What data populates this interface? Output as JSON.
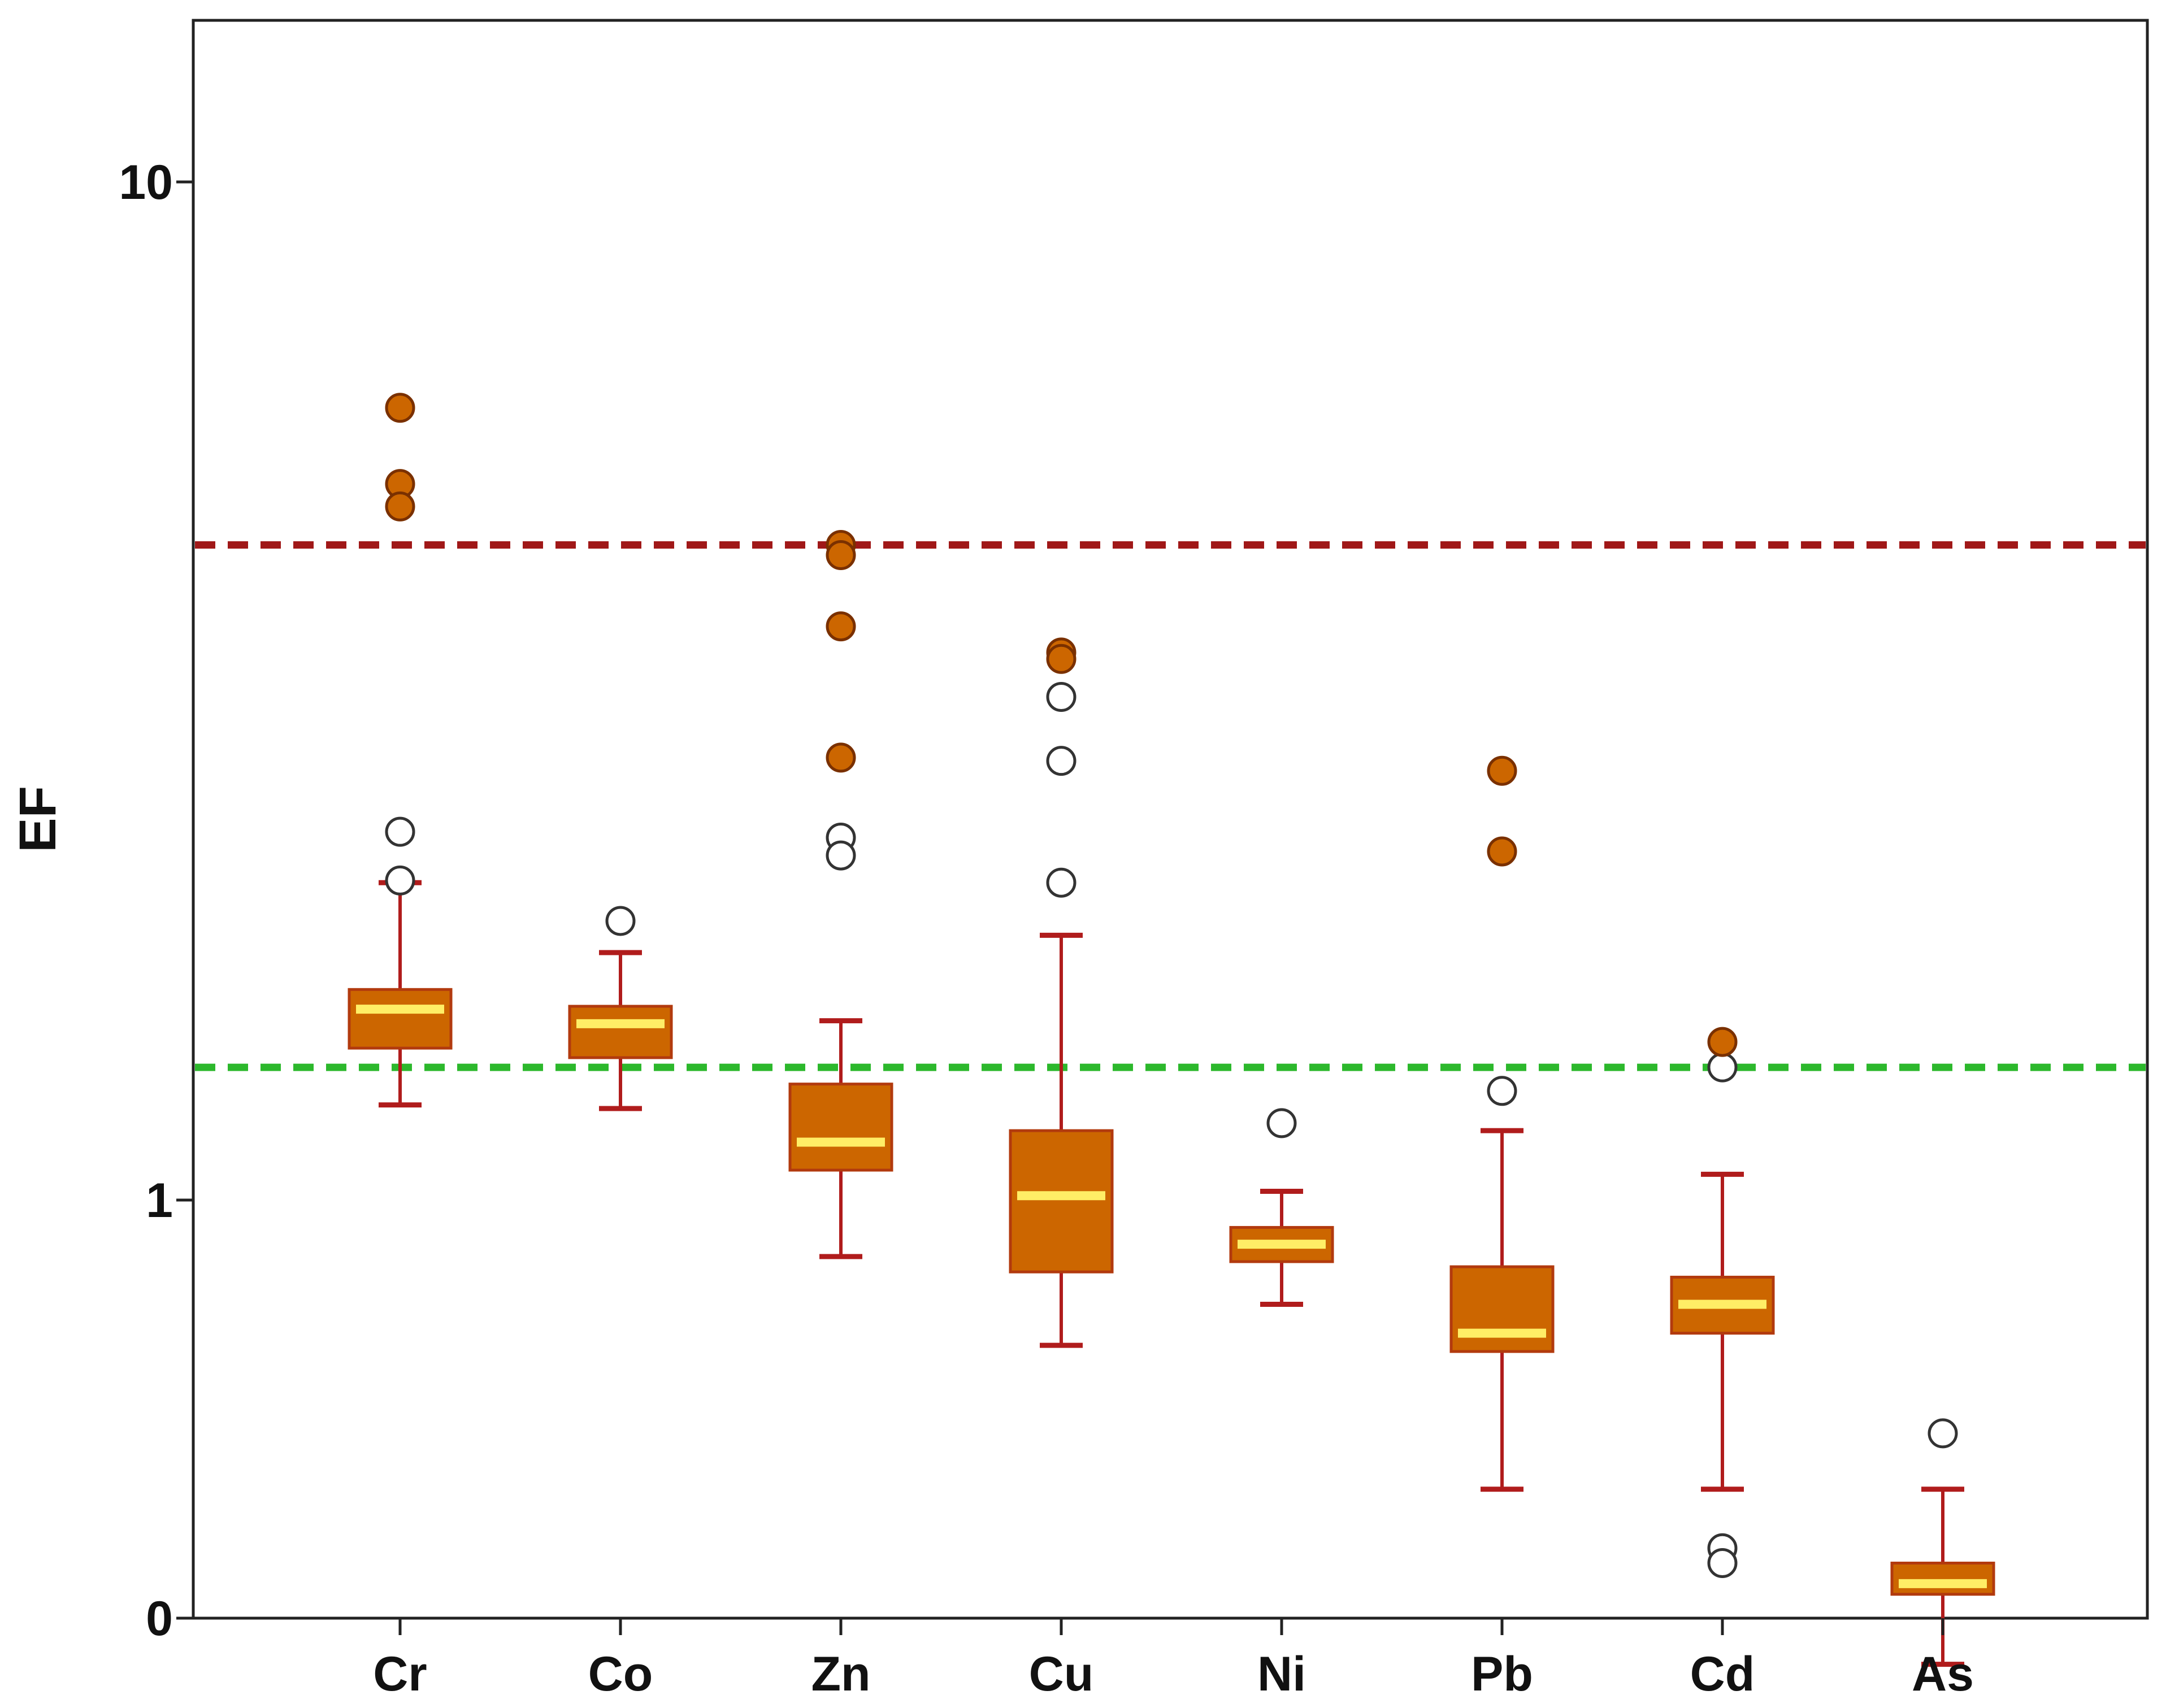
{
  "chart_data": {
    "type": "box",
    "title": "",
    "xlabel": "",
    "ylabel": "EF",
    "y_ticks": [
      {
        "value": 10,
        "label": "10"
      },
      {
        "value": 1,
        "label": "1"
      },
      {
        "value": 0,
        "label": "0"
      }
    ],
    "ylim": [
      0.1,
      13.6
    ],
    "categories": [
      "Cr",
      "Co",
      "Zn",
      "Cu",
      "Ni",
      "Pb",
      "Cd",
      "As"
    ],
    "reference_lines": [
      {
        "name": "high-threshold-line",
        "value": 4.4,
        "color": "#a01818",
        "style": "dashed"
      },
      {
        "name": "low-threshold-line",
        "value": 1.35,
        "color": "#2cb82c",
        "style": "dashed"
      }
    ],
    "boxes": [
      {
        "category": "Cr",
        "whisker_low": 1.24,
        "q1": 1.41,
        "median": 1.54,
        "q3": 1.61,
        "whisker_high": 2.05,
        "outliers": [
          2.3,
          2.06
        ],
        "extremes": [
          6.0,
          5.05,
          4.8
        ]
      },
      {
        "category": "Co",
        "whisker_low": 1.23,
        "q1": 1.38,
        "median": 1.49,
        "q3": 1.55,
        "whisker_high": 1.75,
        "outliers": [
          1.88
        ],
        "extremes": []
      },
      {
        "category": "Zn",
        "whisker_low": 0.88,
        "q1": 1.07,
        "median": 1.14,
        "q3": 1.3,
        "whisker_high": 1.5,
        "outliers": [
          2.27,
          2.18
        ],
        "extremes": [
          4.4,
          4.3,
          3.66,
          2.72
        ]
      },
      {
        "category": "Cu",
        "whisker_low": 0.72,
        "q1": 0.85,
        "median": 1.01,
        "q3": 1.17,
        "whisker_high": 1.82,
        "outliers": [
          3.12,
          2.7,
          2.05
        ],
        "extremes": [
          3.45,
          3.4
        ]
      },
      {
        "category": "Ni",
        "whisker_low": 0.79,
        "q1": 0.87,
        "median": 0.905,
        "q3": 0.94,
        "whisker_high": 1.02,
        "outliers": [
          1.19
        ],
        "extremes": []
      },
      {
        "category": "Pb",
        "whisker_low": 0.52,
        "q1": 0.71,
        "median": 0.74,
        "q3": 0.86,
        "whisker_high": 1.17,
        "outliers": [
          1.28
        ],
        "extremes": [
          2.64,
          2.2
        ]
      },
      {
        "category": "Cd",
        "whisker_low": 0.52,
        "q1": 0.74,
        "median": 0.79,
        "q3": 0.84,
        "whisker_high": 1.06,
        "outliers": [
          1.35,
          0.455,
          0.44
        ],
        "extremes": [
          1.43
        ]
      },
      {
        "category": "As",
        "whisker_low": 0.35,
        "q1": 0.41,
        "median": 0.42,
        "q3": 0.44,
        "whisker_high": 0.52,
        "outliers": [
          0.59
        ],
        "extremes": []
      }
    ],
    "colors": {
      "box_fill": "#cc6600",
      "box_stroke": "#b23a0e",
      "whisker": "#b01c1c",
      "median": "#ffee66",
      "extreme_fill": "#cc6600",
      "outlier_fill": "#ffffff",
      "axis": "#222222",
      "text": "#111111"
    }
  }
}
